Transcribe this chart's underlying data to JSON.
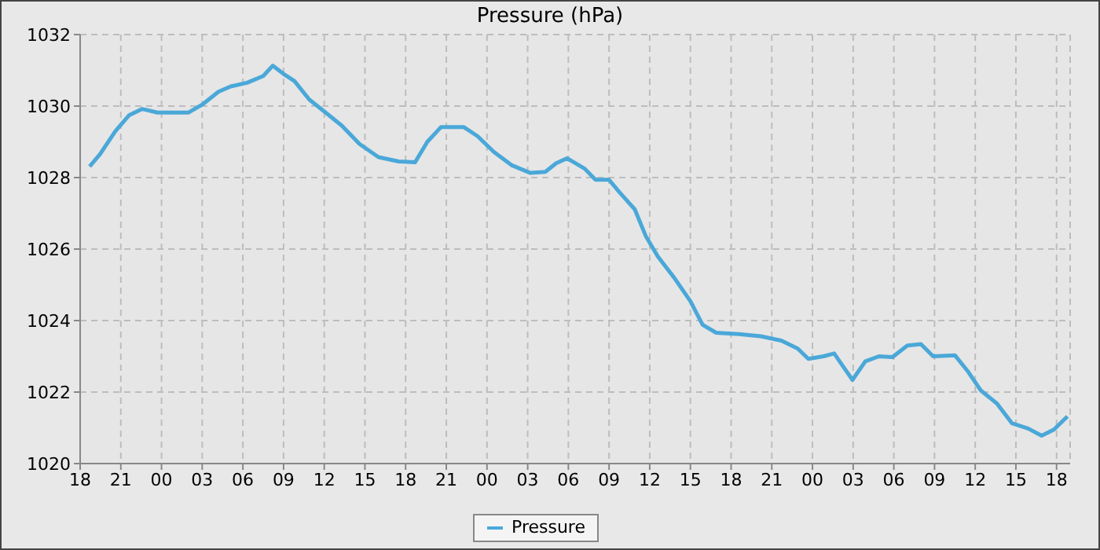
{
  "chart_data": {
    "type": "line",
    "title": "Pressure (hPa)",
    "x": [
      18.7,
      19.46,
      20.6,
      21.6,
      22.56,
      23.7,
      24.9,
      26.0,
      27.0,
      28.2,
      29.1,
      30.3,
      31.5,
      32.2,
      33.0,
      33.8,
      34.9,
      36.1,
      37.3,
      38.6,
      40.0,
      41.5,
      42.7,
      43.6,
      44.6,
      46.3,
      47.3,
      48.5,
      49.8,
      51.2,
      52.3,
      53.1,
      53.9,
      55.2,
      56.0,
      57.0,
      57.7,
      58.9,
      59.7,
      60.6,
      61.8,
      63.0,
      63.9,
      64.9,
      66.6,
      68.2,
      69.7,
      70.9,
      71.7,
      72.8,
      73.6,
      74.4,
      74.95,
      75.9,
      76.9,
      77.9,
      79.0,
      80.0,
      80.9,
      82.5,
      83.5,
      84.4,
      85.6,
      86.7,
      87.9,
      88.9,
      89.8,
      90.8
    ],
    "series": [
      {
        "name": "Pressure",
        "color": "#4aa8d8",
        "values": [
          1028.31,
          1028.65,
          1029.3,
          1029.74,
          1029.92,
          1029.82,
          1029.82,
          1029.82,
          1030.04,
          1030.4,
          1030.55,
          1030.65,
          1030.84,
          1031.13,
          1030.9,
          1030.7,
          1030.18,
          1029.82,
          1029.45,
          1028.94,
          1028.57,
          1028.45,
          1028.43,
          1029.0,
          1029.41,
          1029.41,
          1029.16,
          1028.72,
          1028.35,
          1028.13,
          1028.16,
          1028.4,
          1028.54,
          1028.25,
          1027.94,
          1027.94,
          1027.62,
          1027.11,
          1026.37,
          1025.79,
          1025.2,
          1024.54,
          1023.88,
          1023.66,
          1023.62,
          1023.56,
          1023.44,
          1023.22,
          1022.93,
          1023.0,
          1023.08,
          1022.64,
          1022.34,
          1022.86,
          1023.0,
          1022.98,
          1023.3,
          1023.34,
          1023.0,
          1023.03,
          1022.56,
          1022.05,
          1021.68,
          1021.13,
          1020.98,
          1020.78,
          1020.95,
          1021.32
        ]
      }
    ],
    "xlim": [
      18,
      91
    ],
    "xticks": [
      {
        "value": 18,
        "label": "18"
      },
      {
        "value": 21,
        "label": "21"
      },
      {
        "value": 24,
        "label": "00"
      },
      {
        "value": 27,
        "label": "03"
      },
      {
        "value": 30,
        "label": "06"
      },
      {
        "value": 33,
        "label": "09"
      },
      {
        "value": 36,
        "label": "12"
      },
      {
        "value": 39,
        "label": "15"
      },
      {
        "value": 42,
        "label": "18"
      },
      {
        "value": 45,
        "label": "21"
      },
      {
        "value": 48,
        "label": "00"
      },
      {
        "value": 51,
        "label": "03"
      },
      {
        "value": 54,
        "label": "06"
      },
      {
        "value": 57,
        "label": "09"
      },
      {
        "value": 60,
        "label": "12"
      },
      {
        "value": 63,
        "label": "15"
      },
      {
        "value": 66,
        "label": "18"
      },
      {
        "value": 69,
        "label": "21"
      },
      {
        "value": 72,
        "label": "00"
      },
      {
        "value": 75,
        "label": "03"
      },
      {
        "value": 78,
        "label": "06"
      },
      {
        "value": 81,
        "label": "09"
      },
      {
        "value": 84,
        "label": "12"
      },
      {
        "value": 87,
        "label": "15"
      },
      {
        "value": 90,
        "label": "18"
      }
    ],
    "ylim": [
      1020,
      1032
    ],
    "yticks": [
      1020,
      1022,
      1024,
      1026,
      1028,
      1030,
      1032
    ],
    "grid": true,
    "legend": "bottom",
    "marker": "none",
    "line_style": "solid"
  }
}
